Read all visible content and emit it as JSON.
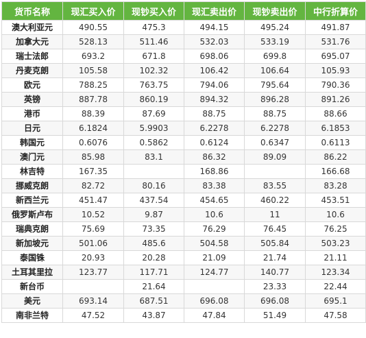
{
  "table": {
    "headers": [
      "货币名称",
      "现汇买入价",
      "现钞买入价",
      "现汇卖出价",
      "现钞卖出价",
      "中行折算价"
    ],
    "rows": [
      [
        "澳大利亚元",
        "490.55",
        "475.3",
        "494.15",
        "495.24",
        "491.87"
      ],
      [
        "加拿大元",
        "528.13",
        "511.46",
        "532.03",
        "533.19",
        "531.76"
      ],
      [
        "瑞士法郎",
        "693.2",
        "671.8",
        "698.06",
        "699.8",
        "695.07"
      ],
      [
        "丹麦克朗",
        "105.58",
        "102.32",
        "106.42",
        "106.64",
        "105.93"
      ],
      [
        "欧元",
        "788.25",
        "763.75",
        "794.06",
        "795.64",
        "790.36"
      ],
      [
        "英镑",
        "887.78",
        "860.19",
        "894.32",
        "896.28",
        "891.26"
      ],
      [
        "港币",
        "88.39",
        "87.69",
        "88.75",
        "88.75",
        "88.66"
      ],
      [
        "日元",
        "6.1824",
        "5.9903",
        "6.2278",
        "6.2278",
        "6.1853"
      ],
      [
        "韩国元",
        "0.6076",
        "0.5862",
        "0.6124",
        "0.6347",
        "0.6113"
      ],
      [
        "澳门元",
        "85.98",
        "83.1",
        "86.32",
        "89.09",
        "86.22"
      ],
      [
        "林吉特",
        "167.35",
        "",
        "168.86",
        "",
        "166.68"
      ],
      [
        "挪威克朗",
        "82.72",
        "80.16",
        "83.38",
        "83.55",
        "83.28"
      ],
      [
        "新西兰元",
        "451.47",
        "437.54",
        "454.65",
        "460.22",
        "453.51"
      ],
      [
        "俄罗斯卢布",
        "10.52",
        "9.87",
        "10.6",
        "11",
        "10.6"
      ],
      [
        "瑞典克朗",
        "75.69",
        "73.35",
        "76.29",
        "76.45",
        "76.25"
      ],
      [
        "新加坡元",
        "501.06",
        "485.6",
        "504.58",
        "505.84",
        "503.23"
      ],
      [
        "泰国铢",
        "20.93",
        "20.28",
        "21.09",
        "21.74",
        "21.11"
      ],
      [
        "土耳其里拉",
        "123.77",
        "117.71",
        "124.77",
        "140.77",
        "123.34"
      ],
      [
        "新台币",
        "",
        "21.64",
        "",
        "23.33",
        "22.44"
      ],
      [
        "美元",
        "693.14",
        "687.51",
        "696.08",
        "696.08",
        "695.1"
      ],
      [
        "南非兰特",
        "47.52",
        "43.87",
        "47.84",
        "51.49",
        "47.58"
      ]
    ]
  },
  "colors": {
    "header_bg": "#63b540",
    "header_text": "#ffffff",
    "border": "#d8d8d8"
  }
}
